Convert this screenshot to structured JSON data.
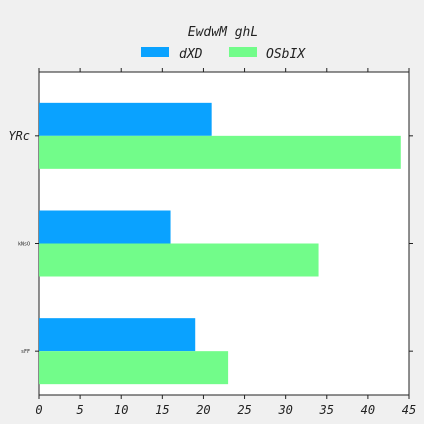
{
  "chart_data": {
    "type": "bar",
    "orientation": "horizontal",
    "title": "EwdwM  ghL",
    "xlabel": "",
    "ylabel": "",
    "categories": [
      "YRc",
      "kNsO",
      "sFF"
    ],
    "series": [
      {
        "name": "dXD",
        "values": [
          21,
          16,
          19
        ],
        "color": "#0aa2ff"
      },
      {
        "name": "OSbIX",
        "values": [
          44,
          34,
          23
        ],
        "color": "#72fc8a"
      }
    ],
    "xlim": [
      0,
      45
    ],
    "xticks": [
      "0",
      "5",
      "10",
      "15",
      "20",
      "25",
      "30",
      "35",
      "40",
      "45"
    ],
    "grid": false,
    "legend_placement": "top-center"
  }
}
